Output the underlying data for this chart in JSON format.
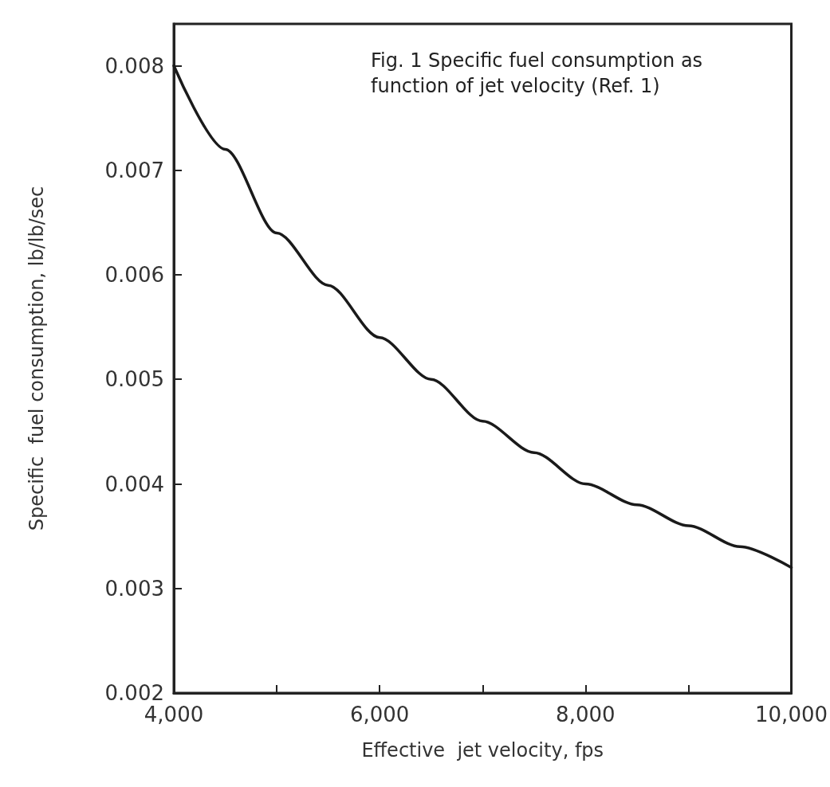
{
  "chart_data": {
    "type": "line",
    "title": "Fig. 1 Specific fuel consumption as function of jet velocity (Ref. 1)",
    "xlabel": "Effective  jet velocity, fps",
    "ylabel": "Specific  fuel consumption, lb/lb/sec",
    "x": [
      4000,
      4500,
      5000,
      5500,
      6000,
      6500,
      7000,
      7500,
      8000,
      8500,
      9000,
      9500,
      10000
    ],
    "series": [
      {
        "color": "#1a1a1a",
        "values": [
          0.008,
          0.0072,
          0.0064,
          0.0059,
          0.0054,
          0.005,
          0.0046,
          0.0043,
          0.004,
          0.0038,
          0.0036,
          0.0034,
          0.0032
        ]
      }
    ],
    "xlim": [
      4000,
      10000
    ],
    "xticks": [
      {
        "value": 4000,
        "label": "4,000"
      },
      {
        "value": 5000,
        "label": null
      },
      {
        "value": 6000,
        "label": "6,000"
      },
      {
        "value": 7000,
        "label": null
      },
      {
        "value": 8000,
        "label": "8,000"
      },
      {
        "value": 9000,
        "label": null
      },
      {
        "value": 10000,
        "label": "10,000"
      }
    ],
    "ylim": [
      0.002,
      0.0084
    ],
    "yticks": [
      {
        "value": 0.002,
        "label": "0.002"
      },
      {
        "value": 0.003,
        "label": "0.003"
      },
      {
        "value": 0.004,
        "label": "0.004"
      },
      {
        "value": 0.005,
        "label": "0.005"
      },
      {
        "value": 0.006,
        "label": "0.006"
      },
      {
        "value": 0.007,
        "label": "0.007"
      },
      {
        "value": 0.008,
        "label": "0.008"
      }
    ],
    "grid": false,
    "marker": "none",
    "line_style": "solid"
  }
}
